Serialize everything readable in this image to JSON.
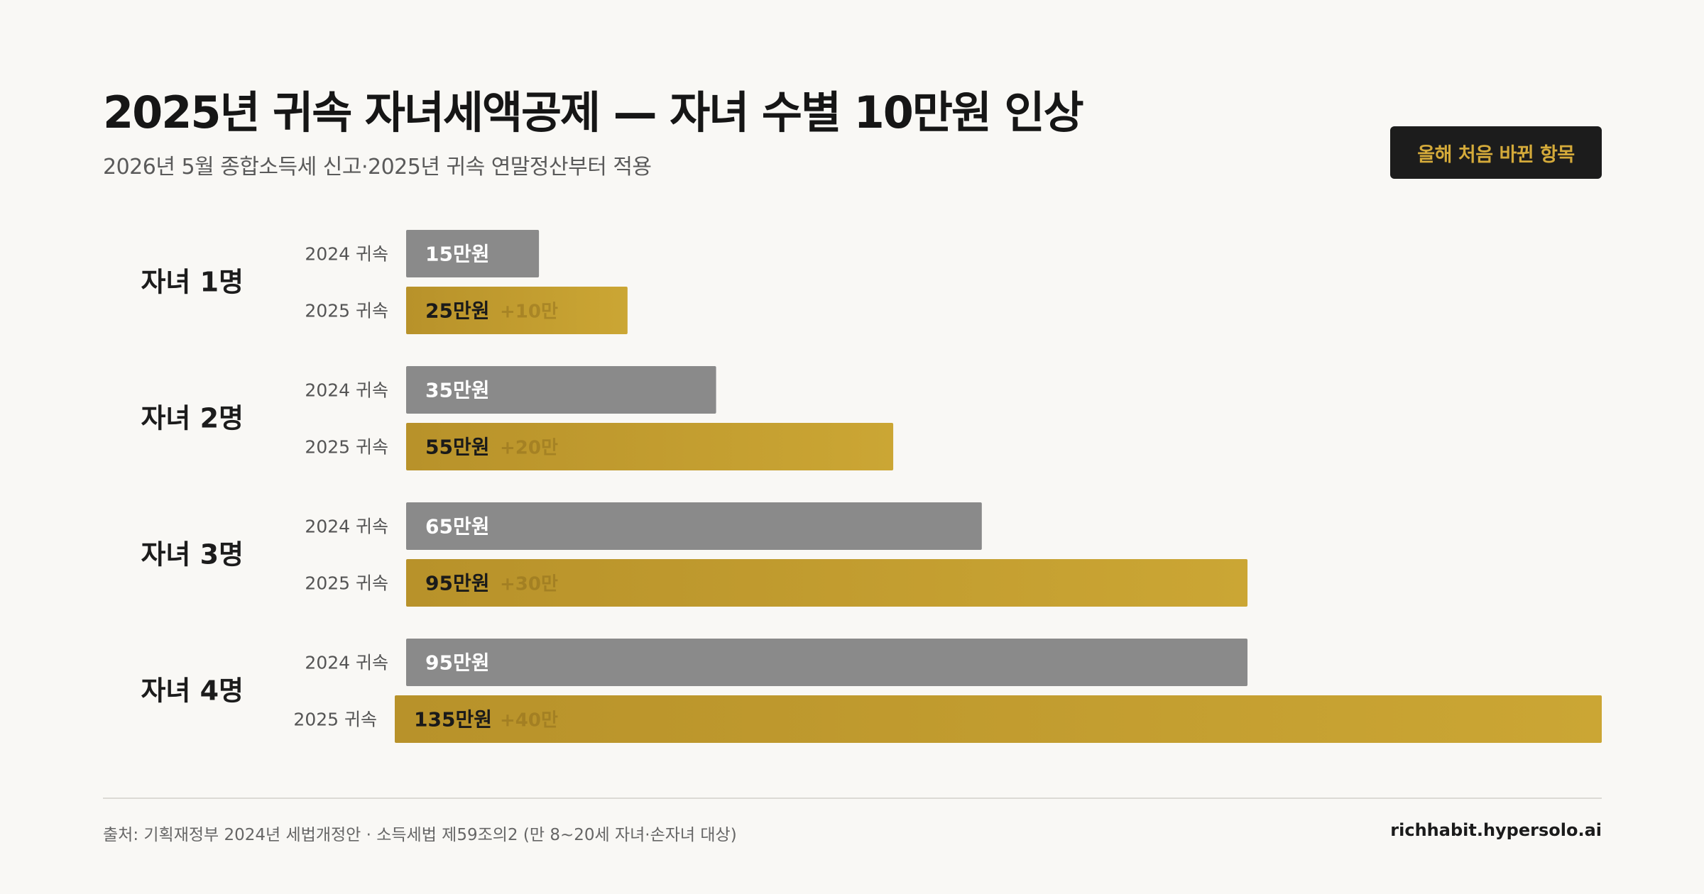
{
  "header": {
    "title": "2025년 귀속 자녀세액공제 — 자녀 수별 10만원 인상",
    "subtitle": "2026년 5월 종합소득세 신고·2025년 귀속 연말정산부터 적용",
    "badge": "올해 처음 바뀐 항목"
  },
  "chart_data": {
    "type": "bar",
    "orientation": "horizontal",
    "categories": [
      "자녀 1명",
      "자녀 2명",
      "자녀 3명",
      "자녀 4명"
    ],
    "series": [
      {
        "name": "2024 귀속",
        "values": [
          15,
          35,
          65,
          95
        ],
        "labels": [
          "15만원",
          "35만원",
          "65만원",
          "95만원"
        ],
        "color": "#8a8a8a"
      },
      {
        "name": "2025 귀속",
        "values": [
          25,
          55,
          95,
          135
        ],
        "labels": [
          "25만원",
          "55만원",
          "95만원",
          "135만원"
        ],
        "increase_labels": [
          "+10만",
          "+20만",
          "+30만",
          "+40만"
        ],
        "color": "#c4a030"
      }
    ],
    "unit": "만원",
    "xlim": [
      0,
      135
    ]
  },
  "footer": {
    "source": "출처: 기획재정부 2024년 세법개정안 · 소득세법 제59조의2 (만 8~20세 자녀·손자녀 대상)",
    "site": "richhabit.hypersolo.ai"
  },
  "colors": {
    "background": "#f9f8f5",
    "bar_2024": "#8a8a8a",
    "bar_2025_start": "#b8922a",
    "bar_2025_end": "#cba634",
    "badge_bg": "#1c1c1c",
    "badge_text": "#d4aa3a"
  }
}
